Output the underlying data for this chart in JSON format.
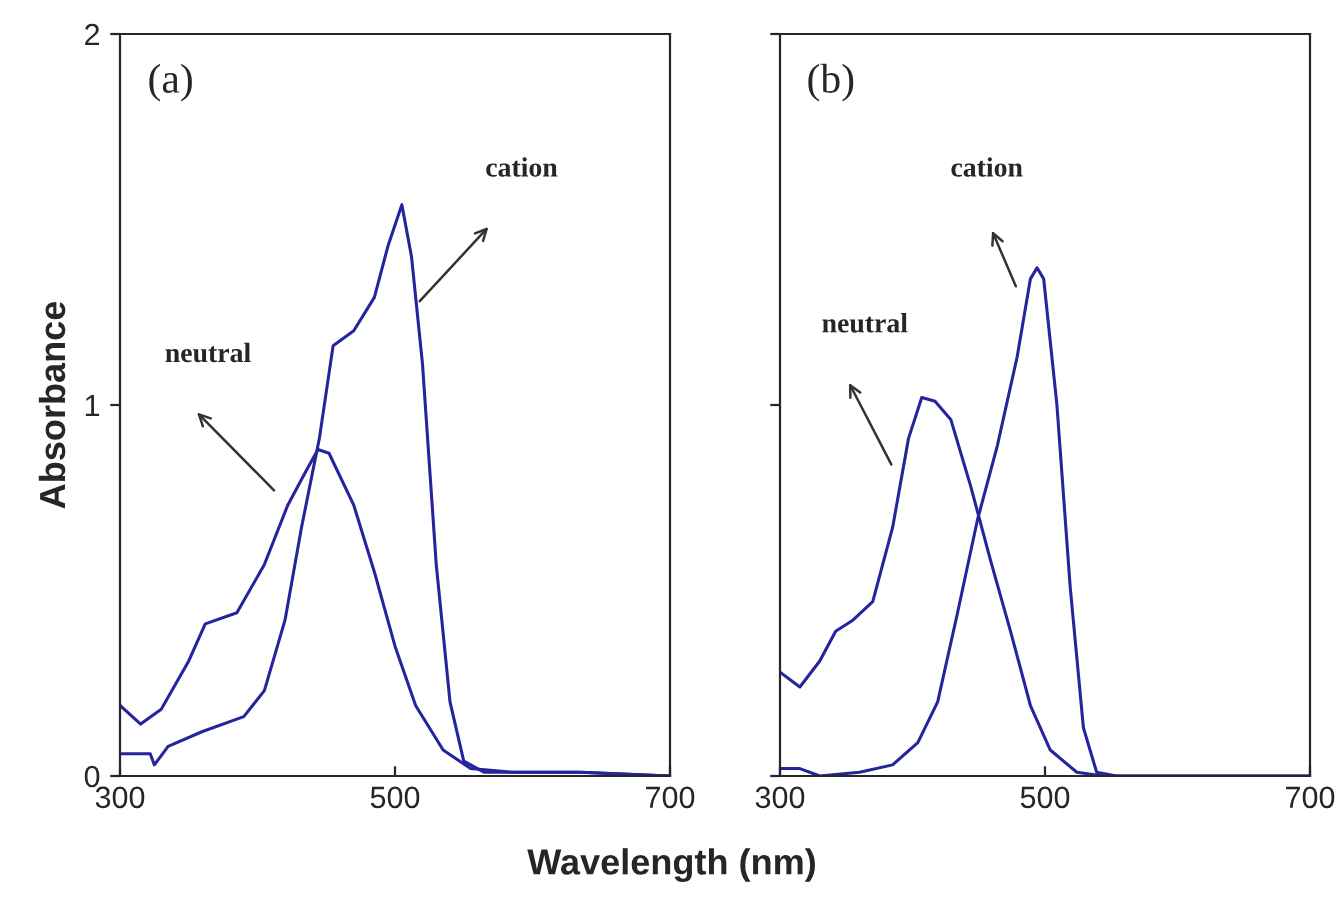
{
  "chart_data": [
    {
      "type": "line",
      "ylabel": "Absorbance",
      "xlabel": "Wavelength (nm)",
      "xlim": [
        300,
        700
      ],
      "xticks": [
        300,
        500,
        700
      ],
      "ylim": [
        0,
        2
      ],
      "yticks": [
        0,
        1,
        2
      ],
      "grid": false,
      "legend": false,
      "annotations": [
        "(a)",
        "cation",
        "neutral"
      ],
      "series": [
        {
          "color": "#24249c",
          "x": [
            300,
            315,
            330,
            350,
            362,
            385,
            405,
            422,
            435,
            444,
            452,
            470,
            485,
            500,
            515,
            535,
            555,
            585,
            635,
            700
          ],
          "values": [
            0.19,
            0.14,
            0.18,
            0.31,
            0.41,
            0.44,
            0.57,
            0.73,
            0.82,
            0.88,
            0.87,
            0.73,
            0.55,
            0.35,
            0.19,
            0.07,
            0.02,
            0.01,
            0.01,
            0.0
          ]
        },
        {
          "color": "#24249c",
          "x": [
            300,
            322,
            325,
            335,
            360,
            390,
            405,
            420,
            432,
            445,
            455,
            470,
            485,
            495,
            505,
            512,
            520,
            530,
            540,
            550,
            565,
            635,
            700
          ],
          "values": [
            0.06,
            0.06,
            0.03,
            0.08,
            0.12,
            0.16,
            0.23,
            0.42,
            0.67,
            0.91,
            1.16,
            1.2,
            1.29,
            1.43,
            1.54,
            1.4,
            1.11,
            0.57,
            0.2,
            0.04,
            0.01,
            0.01,
            0.0
          ]
        }
      ]
    },
    {
      "type": "line",
      "xlim": [
        300,
        700
      ],
      "xticks": [
        300,
        500,
        700
      ],
      "ylim": [
        0,
        2
      ],
      "yticks": [
        0,
        1,
        2
      ],
      "tick_labels": "x",
      "grid": false,
      "legend": false,
      "annotations": [
        "(b)",
        "cation",
        "neutral"
      ],
      "series": [
        {
          "color": "#24249c",
          "x": [
            300,
            315,
            330,
            342,
            355,
            370,
            385,
            397,
            407,
            417,
            429,
            444,
            459,
            474,
            489,
            504,
            524,
            544,
            633,
            700
          ],
          "values": [
            0.28,
            0.24,
            0.31,
            0.39,
            0.42,
            0.47,
            0.67,
            0.91,
            1.02,
            1.01,
            0.96,
            0.78,
            0.58,
            0.39,
            0.19,
            0.07,
            0.01,
            0.0,
            0.0,
            0.0
          ]
        },
        {
          "color": "#24249c",
          "x": [
            300,
            315,
            330,
            360,
            385,
            404,
            419,
            434,
            449,
            464,
            479,
            489,
            494,
            499,
            509,
            519,
            529,
            539,
            554,
            633,
            700
          ],
          "values": [
            0.02,
            0.02,
            0.0,
            0.01,
            0.03,
            0.09,
            0.2,
            0.44,
            0.69,
            0.89,
            1.13,
            1.34,
            1.37,
            1.34,
            1.0,
            0.51,
            0.13,
            0.01,
            0.0,
            0.0,
            0.0
          ]
        }
      ]
    }
  ]
}
